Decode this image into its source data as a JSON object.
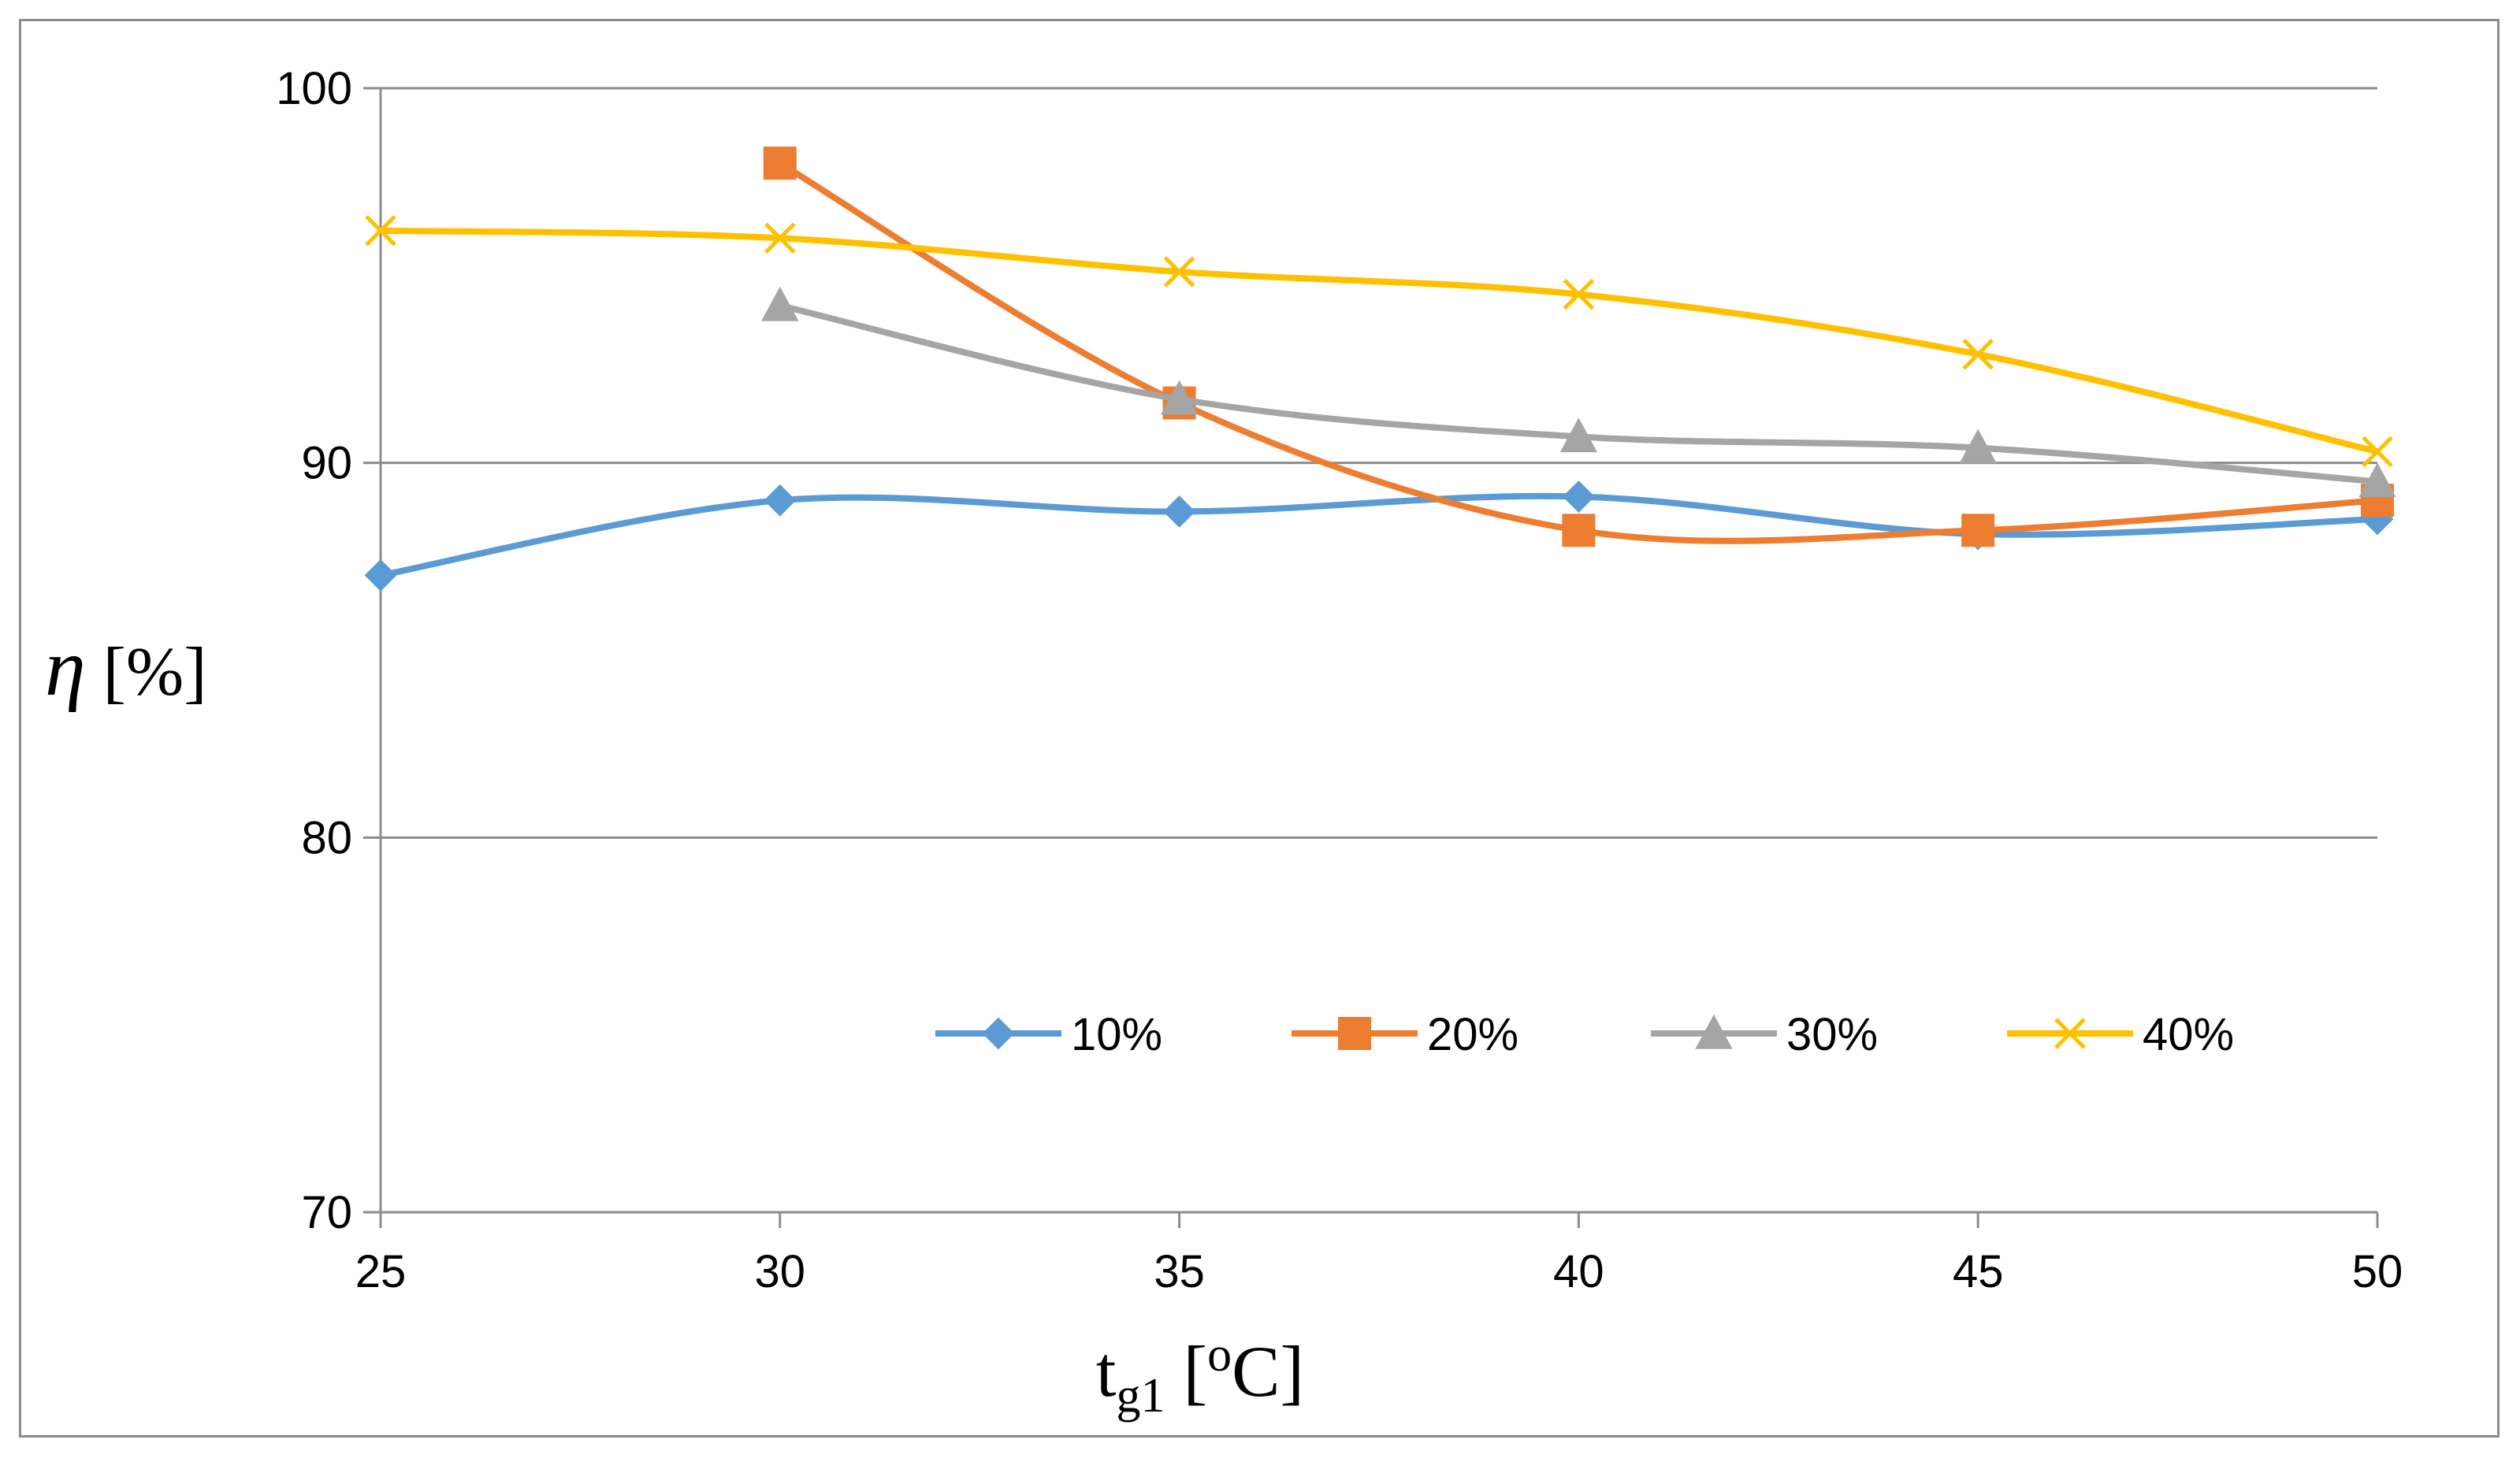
{
  "chart_data": {
    "type": "line",
    "title": "",
    "xlabel": "t",
    "xlabel_sub": "g1",
    "xlabel_unit_open": " [",
    "xlabel_unit_sup": "o",
    "xlabel_unit_rest": "C]",
    "ylabel": "η",
    "ylabel_unit": " [%]",
    "xlim": [
      25,
      50
    ],
    "ylim": [
      70,
      100
    ],
    "x_ticks": [
      25,
      30,
      35,
      40,
      45,
      50
    ],
    "y_ticks": [
      70,
      80,
      90,
      100
    ],
    "grid": true,
    "legend_position": "inside-bottom-center",
    "series": [
      {
        "name": "10%",
        "color": "#5B9BD5",
        "marker": "diamond",
        "x": [
          25,
          30,
          35,
          40,
          45,
          50
        ],
        "y": [
          87.0,
          89.0,
          88.7,
          89.1,
          88.1,
          88.5
        ]
      },
      {
        "name": "20%",
        "color": "#ED7D31",
        "marker": "square",
        "x": [
          30,
          35,
          40,
          45,
          50
        ],
        "y": [
          98.0,
          91.6,
          88.2,
          88.2,
          89.0
        ]
      },
      {
        "name": "30%",
        "color": "#A5A5A5",
        "marker": "triangle",
        "x": [
          30,
          35,
          40,
          45,
          50
        ],
        "y": [
          94.2,
          91.7,
          90.7,
          90.4,
          89.5
        ]
      },
      {
        "name": "40%",
        "color": "#FFC000",
        "marker": "x",
        "x": [
          25,
          30,
          35,
          40,
          45,
          50
        ],
        "y": [
          96.2,
          96.0,
          95.1,
          94.5,
          92.9,
          90.3
        ]
      }
    ]
  }
}
